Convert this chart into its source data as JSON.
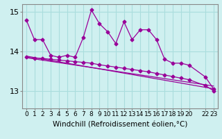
{
  "xlabel": "Windchill (Refroidissement éolien,°C)",
  "ylabel": "",
  "background_color": "#cff0f0",
  "grid_color": "#aadddd",
  "line_color": "#990099",
  "xlim": [
    -0.5,
    23.5
  ],
  "ylim": [
    12.55,
    15.2
  ],
  "yticks": [
    13,
    14,
    15
  ],
  "xticks": [
    0,
    1,
    2,
    3,
    4,
    5,
    6,
    7,
    8,
    9,
    10,
    11,
    12,
    13,
    14,
    15,
    16,
    17,
    18,
    19,
    20,
    22,
    23
  ],
  "xtick_labels": [
    "0",
    "1",
    "2",
    "3",
    "4",
    "5",
    "6",
    "7",
    "8",
    "9",
    "10",
    "11",
    "12",
    "13",
    "14",
    "15",
    "16",
    "17",
    "18",
    "19",
    "20",
    "22",
    "23"
  ],
  "series1_x": [
    0,
    1,
    2,
    3,
    4,
    5,
    6,
    7,
    8,
    9,
    10,
    11,
    12,
    13,
    14,
    15,
    16,
    17,
    18,
    19,
    20,
    22,
    23
  ],
  "series1_y": [
    14.8,
    14.3,
    14.3,
    13.9,
    13.85,
    13.9,
    13.85,
    14.35,
    15.05,
    14.7,
    14.5,
    14.2,
    14.75,
    14.3,
    14.55,
    14.55,
    14.3,
    13.8,
    13.7,
    13.7,
    13.65,
    13.35,
    13.05
  ],
  "series2_x": [
    0,
    1,
    2,
    3,
    4,
    5,
    6,
    7,
    8,
    9,
    10,
    11,
    12,
    13,
    14,
    15,
    16,
    17,
    18,
    19,
    20,
    22,
    23
  ],
  "series2_y": [
    13.85,
    13.83,
    13.82,
    13.8,
    13.78,
    13.76,
    13.74,
    13.72,
    13.7,
    13.66,
    13.63,
    13.6,
    13.57,
    13.54,
    13.51,
    13.48,
    13.44,
    13.4,
    13.36,
    13.32,
    13.28,
    13.13,
    13.0
  ],
  "series3_x": [
    0,
    23
  ],
  "series3_y": [
    13.88,
    13.05
  ],
  "series4_x": [
    0,
    23
  ],
  "series4_y": [
    13.84,
    13.12
  ],
  "fontsize_xlabel": 7.5,
  "fontsize_yticks": 8,
  "fontsize_xticks": 6.5,
  "marker": "D",
  "markersize": 2.5,
  "linewidth": 0.9
}
